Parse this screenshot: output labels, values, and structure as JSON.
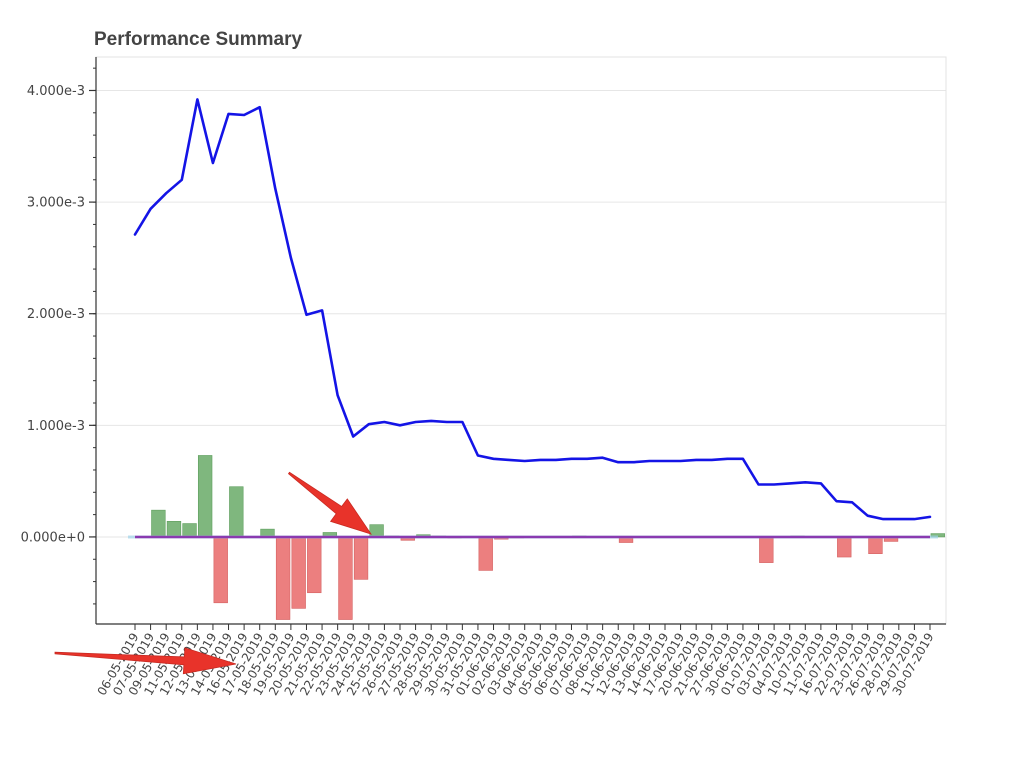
{
  "chart_data": {
    "type": "bar",
    "title": "Performance Summary",
    "xlabel": "",
    "ylabel": "",
    "ylim": [
      -0.00078,
      0.0043
    ],
    "yticks": [
      0,
      0.001,
      0.002,
      0.003,
      0.004
    ],
    "ytick_labels": [
      "0.000e+0",
      "1.000e-3",
      "2.000e-3",
      "3.000e-3",
      "4.000e-3"
    ],
    "grid": true,
    "legend": "none",
    "colors": {
      "line": "#1414e6",
      "positive_bar": "#7fb77e",
      "positive_bar_edge": "#5e9e5d",
      "negative_bar": "#ec7f7f",
      "negative_bar_edge": "#d46161",
      "zero_line": "#8a3ab0",
      "grid": "#e6e6e6",
      "axis": "#333333"
    },
    "categories": [
      "06-05-2019",
      "07-05-2019",
      "09-05-2019",
      "11-05-2019",
      "12-05-2019",
      "13-05-2019",
      "14-05-2019",
      "16-05-2019",
      "17-05-2019",
      "18-05-2019",
      "19-05-2019",
      "20-05-2019",
      "21-05-2019",
      "22-05-2019",
      "23-05-2019",
      "24-05-2019",
      "25-05-2019",
      "26-05-2019",
      "27-05-2019",
      "28-05-2019",
      "29-05-2019",
      "30-05-2019",
      "31-05-2019",
      "01-06-2019",
      "02-06-2019",
      "03-06-2019",
      "04-06-2019",
      "05-06-2019",
      "06-06-2019",
      "07-06-2019",
      "08-06-2019",
      "11-06-2019",
      "12-06-2019",
      "13-06-2019",
      "14-06-2019",
      "17-06-2019",
      "20-06-2019",
      "21-06-2019",
      "27-06-2019",
      "30-06-2019",
      "01-07-2019",
      "03-07-2019",
      "04-07-2019",
      "10-07-2019",
      "11-07-2019",
      "16-07-2019",
      "22-07-2019",
      "23-07-2019",
      "26-07-2019",
      "28-07-2019",
      "29-07-2019",
      "30-07-2019"
    ],
    "series": [
      {
        "type": "line",
        "values": [
          0.00271,
          0.00294,
          0.00308,
          0.0032,
          0.00392,
          0.00335,
          0.00379,
          0.00378,
          0.00385,
          0.00312,
          0.0025,
          0.00199,
          0.00203,
          0.00127,
          0.0009,
          0.00101,
          0.00103,
          0.001,
          0.00103,
          0.00104,
          0.00103,
          0.00103,
          0.00073,
          0.0007,
          0.00069,
          0.00068,
          0.00069,
          0.00069,
          0.0007,
          0.0007,
          0.00071,
          0.00067,
          0.00067,
          0.00068,
          0.00068,
          0.00068,
          0.00069,
          0.00069,
          0.0007,
          0.0007,
          0.00047,
          0.00047,
          0.00048,
          0.00049,
          0.00048,
          0.00032,
          0.00031,
          0.00019,
          0.00016,
          0.00016,
          0.00016,
          0.00018
        ]
      },
      {
        "type": "bar",
        "values": [
          0.0,
          0.00024,
          0.00014,
          0.00012,
          0.00073,
          -0.00059,
          0.00045,
          0.0,
          7e-05,
          -0.00074,
          -0.00064,
          -0.0005,
          4e-05,
          -0.00074,
          -0.00038,
          0.00011,
          1e-05,
          -3e-05,
          2e-05,
          1e-05,
          -1e-05,
          0.0,
          -0.0003,
          -2e-05,
          -1e-05,
          0.0,
          0.0,
          0.0,
          1e-05,
          0.0,
          0.0,
          -5e-05,
          0.0,
          0.0,
          0.0,
          0.0,
          0.0,
          0.0,
          0.0,
          0.0,
          -0.00023,
          0.0,
          1e-05,
          0.0,
          0.0,
          -0.00018,
          0.0,
          -0.00015,
          -4e-05,
          0.0,
          0.0,
          3e-05
        ]
      }
    ]
  },
  "annotations": [
    {
      "name": "red-arrow-x-axis-dates"
    },
    {
      "name": "red-arrow-bar-near-zero"
    }
  ]
}
